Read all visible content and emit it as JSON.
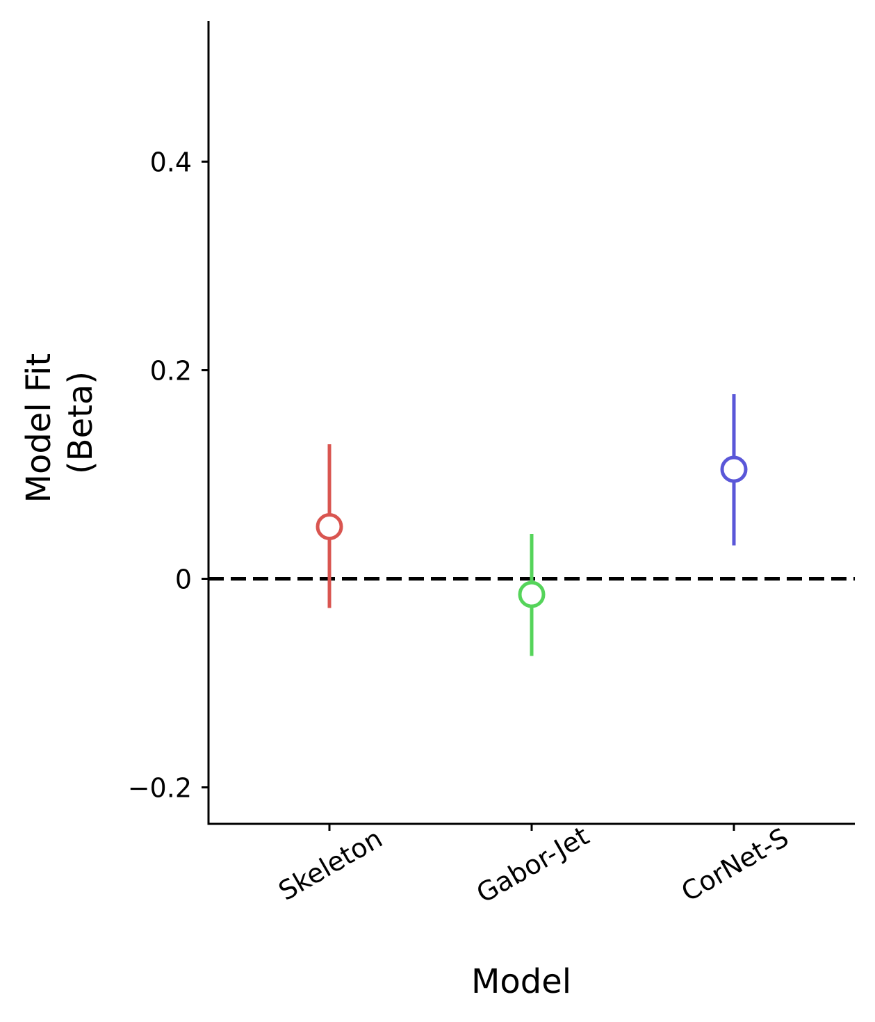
{
  "chart_data": {
    "type": "scatter",
    "title": "",
    "xlabel": "Model",
    "ylabel_lines": [
      "Model Fit",
      "(Beta)"
    ],
    "categories": [
      "Skeleton",
      "Gabor-Jet",
      "CorNet-S"
    ],
    "points": [
      {
        "category": "Skeleton",
        "value": 0.05,
        "ci_low": -0.028,
        "ci_high": 0.129,
        "color": "#d95550"
      },
      {
        "category": "Gabor-Jet",
        "value": -0.015,
        "ci_low": -0.074,
        "ci_high": 0.043,
        "color": "#55d45a"
      },
      {
        "category": "CorNet-S",
        "value": 0.105,
        "ci_low": 0.032,
        "ci_high": 0.177,
        "color": "#5a57d8"
      }
    ],
    "yticks": [
      {
        "value": 0.4,
        "label": "0.4"
      },
      {
        "value": 0.2,
        "label": "0.2"
      },
      {
        "value": 0,
        "label": "0"
      },
      {
        "value": -0.2,
        "label": "−0.2"
      }
    ],
    "ylim": [
      -0.235,
      0.535
    ],
    "reference_line": {
      "value": 0,
      "style": "dashed",
      "color": "#000000"
    },
    "grid": false,
    "legend": "none"
  }
}
